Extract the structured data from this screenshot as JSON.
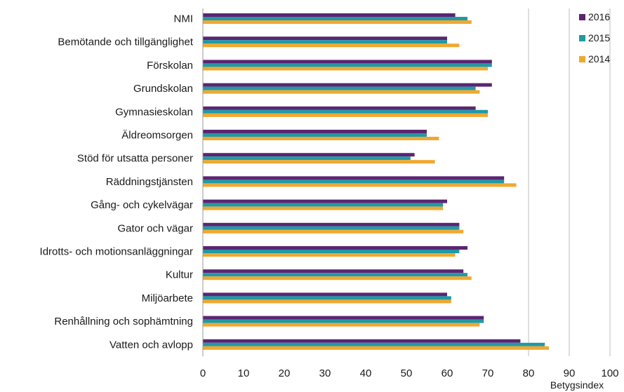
{
  "chart_data": {
    "type": "bar",
    "orientation": "horizontal",
    "categories": [
      "NMI",
      "Bemötande och tillgänglighet",
      "Förskolan",
      "Grundskolan",
      "Gymnasieskolan",
      "Äldreomsorgen",
      "Stöd för utsatta personer",
      "Räddningstjänsten",
      "Gång- och cykelvägar",
      "Gator och vägar",
      "Idrotts- och motionsanläggningar",
      "Kultur",
      "Miljöarbete",
      "Renhållning och sophämtning",
      "Vatten och avlopp"
    ],
    "series": [
      {
        "name": "2016",
        "color": "#5b2573",
        "values": [
          62,
          60,
          71,
          71,
          67,
          55,
          52,
          74,
          60,
          63,
          65,
          64,
          60,
          69,
          78
        ]
      },
      {
        "name": "2015",
        "color": "#1f9aa5",
        "values": [
          65,
          60,
          71,
          67,
          70,
          55,
          51,
          74,
          59,
          63,
          63,
          65,
          61,
          69,
          84
        ]
      },
      {
        "name": "2014",
        "color": "#f0a830",
        "values": [
          66,
          63,
          70,
          68,
          70,
          58,
          57,
          77,
          59,
          64,
          62,
          66,
          61,
          68,
          85
        ]
      }
    ],
    "xlim": [
      0,
      100
    ],
    "xticks": [
      "0",
      "10",
      "20",
      "30",
      "40",
      "50",
      "60",
      "70",
      "80",
      "90",
      "100"
    ],
    "xlabel": "Betygsindex",
    "grid": "vertical lines at 80, 90, 100",
    "legend_position": "top-right"
  }
}
